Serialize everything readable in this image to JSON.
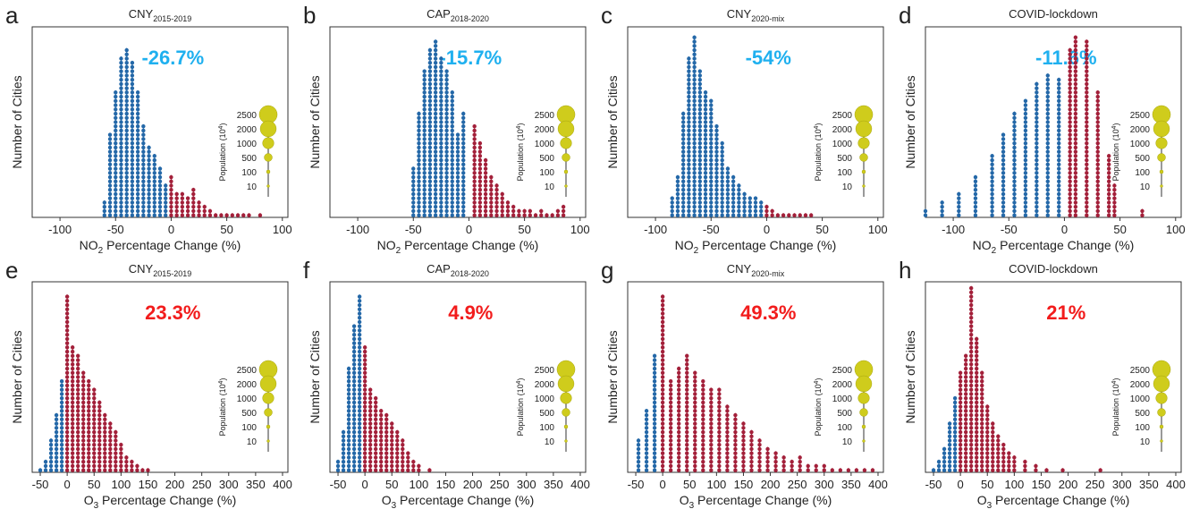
{
  "chart_data": [
    {
      "type": "dot-histogram",
      "panel": "a",
      "title": "CNY",
      "title_sub": "2015-2019",
      "annotation": "-26.7%",
      "annotation_color": "#1fb0ef",
      "xlabel": [
        "NO",
        "2",
        " Percentage Change (%)"
      ],
      "ylabel": "Number of Cities",
      "xlim": [
        -125,
        105
      ],
      "xticks": [
        -100,
        -50,
        0,
        50,
        100
      ],
      "ylim": [
        0,
        45
      ],
      "x": [
        -60,
        -55,
        -50,
        -45,
        -40,
        -35,
        -30,
        -25,
        -20,
        -15,
        -10,
        -5,
        0,
        5,
        10,
        15,
        20,
        25,
        30,
        35,
        40,
        45,
        50,
        55,
        60,
        65,
        70,
        80
      ],
      "values": [
        4,
        20,
        30,
        38,
        40,
        37,
        30,
        22,
        17,
        15,
        12,
        8,
        10,
        6,
        6,
        5,
        7,
        4,
        3,
        2,
        1,
        1,
        1,
        1,
        1,
        1,
        1,
        1
      ],
      "neg_color": "#2468a8",
      "pos_color": "#a3203a",
      "legend_title": [
        "Population (10",
        "4",
        ")"
      ],
      "legend_values": [
        2500,
        2000,
        1000,
        500,
        100,
        10
      ],
      "legend_color": "#cfcc1c"
    },
    {
      "type": "dot-histogram",
      "panel": "b",
      "title": "CAP",
      "title_sub": "2018-2020",
      "annotation": "-15.7%",
      "annotation_color": "#1fb0ef",
      "xlabel": [
        "NO",
        "2",
        " Percentage Change (%)"
      ],
      "ylabel": "Number of Cities",
      "xlim": [
        -125,
        105
      ],
      "xticks": [
        -100,
        -50,
        0,
        50,
        100
      ],
      "ylim": [
        0,
        45
      ],
      "x": [
        -50,
        -45,
        -40,
        -35,
        -30,
        -25,
        -20,
        -15,
        -10,
        -5,
        5,
        10,
        15,
        20,
        25,
        30,
        35,
        40,
        45,
        50,
        55,
        60,
        65,
        70,
        75,
        80,
        85
      ],
      "values": [
        12,
        25,
        35,
        40,
        42,
        38,
        35,
        30,
        20,
        25,
        22,
        18,
        14,
        10,
        8,
        6,
        4,
        3,
        2,
        2,
        2,
        1,
        2,
        1,
        1,
        2,
        3
      ],
      "neg_color": "#2468a8",
      "pos_color": "#a3203a",
      "legend_title": [
        "Population (10",
        "4",
        ")"
      ],
      "legend_values": [
        2500,
        2000,
        1000,
        500,
        100,
        10
      ],
      "legend_color": "#cfcc1c"
    },
    {
      "type": "dot-histogram",
      "panel": "c",
      "title": "CNY",
      "title_sub": "2020-mix",
      "annotation": "-54%",
      "annotation_color": "#1fb0ef",
      "xlabel": [
        "NO",
        "2",
        " Percentage Change (%)"
      ],
      "ylabel": "Number of Cities",
      "xlim": [
        -125,
        105
      ],
      "xticks": [
        -100,
        -50,
        0,
        50,
        100
      ],
      "ylim": [
        0,
        45
      ],
      "x": [
        -85,
        -80,
        -75,
        -70,
        -65,
        -60,
        -55,
        -50,
        -45,
        -40,
        -35,
        -30,
        -25,
        -20,
        -15,
        -10,
        -5,
        0,
        5,
        10,
        15,
        20,
        25,
        30,
        35,
        40
      ],
      "values": [
        5,
        10,
        25,
        38,
        43,
        35,
        30,
        28,
        22,
        18,
        12,
        10,
        8,
        6,
        5,
        5,
        4,
        3,
        2,
        1,
        1,
        1,
        1,
        1,
        1,
        1
      ],
      "neg_color": "#2468a8",
      "pos_color": "#a3203a",
      "legend_title": [
        "Population (10",
        "4",
        ")"
      ],
      "legend_values": [
        2500,
        2000,
        1000,
        500,
        100,
        10
      ],
      "legend_color": "#cfcc1c"
    },
    {
      "type": "dot-histogram",
      "panel": "d",
      "title": "COVID-lockdown",
      "title_sub": null,
      "annotation": "-11.6%",
      "annotation_color": "#1fb0ef",
      "xlabel": [
        "NO",
        "2",
        " Percentage Change (%)"
      ],
      "ylabel": "Number of Cities",
      "xlim": [
        -125,
        105
      ],
      "xticks": [
        -100,
        -50,
        0,
        50,
        100
      ],
      "ylim": [
        0,
        45
      ],
      "x": [
        -125,
        -110,
        -95,
        -80,
        -65,
        -55,
        -45,
        -35,
        -25,
        -15,
        -5,
        5,
        10,
        20,
        30,
        40,
        45,
        70
      ],
      "values": [
        2,
        4,
        6,
        10,
        15,
        20,
        25,
        28,
        32,
        34,
        33,
        40,
        43,
        42,
        30,
        15,
        8,
        2
      ],
      "neg_color": "#2468a8",
      "pos_color": "#a3203a",
      "legend_title": [
        "Population (10",
        "4",
        ")"
      ],
      "legend_values": [
        2500,
        2000,
        1000,
        500,
        100,
        10
      ],
      "legend_color": "#cfcc1c"
    },
    {
      "type": "dot-histogram",
      "panel": "e",
      "title": "CNY",
      "title_sub": "2015-2019",
      "annotation": "23.3%",
      "annotation_color": "#f21c1c",
      "xlabel": [
        "O",
        "3",
        " Percentage Change (%)"
      ],
      "ylabel": "Number of Cities",
      "xlim": [
        -65,
        410
      ],
      "xticks": [
        -50,
        0,
        50,
        100,
        150,
        200,
        250,
        300,
        350,
        400
      ],
      "ylim": [
        0,
        45
      ],
      "x": [
        -50,
        -40,
        -30,
        -20,
        -10,
        0,
        10,
        20,
        30,
        40,
        50,
        60,
        70,
        80,
        90,
        100,
        110,
        120,
        130,
        140,
        150
      ],
      "values": [
        1,
        3,
        8,
        14,
        22,
        42,
        30,
        28,
        24,
        22,
        20,
        17,
        14,
        12,
        10,
        7,
        4,
        3,
        2,
        1,
        1
      ],
      "neg_color": "#2468a8",
      "pos_color": "#a3203a",
      "legend_title": [
        "Population (10",
        "4",
        ")"
      ],
      "legend_values": [
        2500,
        2000,
        1000,
        500,
        100,
        10
      ],
      "legend_color": "#cfcc1c"
    },
    {
      "type": "dot-histogram",
      "panel": "f",
      "title": "CAP",
      "title_sub": "2018-2020",
      "annotation": "4.9%",
      "annotation_color": "#f21c1c",
      "xlabel": [
        "O",
        "3",
        " Percentage Change (%)"
      ],
      "ylabel": "Number of Cities",
      "xlim": [
        -65,
        410
      ],
      "xticks": [
        -50,
        0,
        50,
        100,
        150,
        200,
        250,
        300,
        350,
        400
      ],
      "ylim": [
        0,
        45
      ],
      "x": [
        -50,
        -40,
        -30,
        -20,
        -10,
        0,
        10,
        20,
        30,
        40,
        50,
        60,
        70,
        80,
        90,
        100,
        120
      ],
      "values": [
        3,
        10,
        25,
        35,
        42,
        30,
        20,
        18,
        15,
        14,
        12,
        10,
        8,
        5,
        3,
        2,
        1
      ],
      "neg_color": "#2468a8",
      "pos_color": "#a3203a",
      "legend_title": [
        "Population (10",
        "4",
        ")"
      ],
      "legend_values": [
        2500,
        2000,
        1000,
        500,
        100,
        10
      ],
      "legend_color": "#cfcc1c"
    },
    {
      "type": "dot-histogram",
      "panel": "g",
      "title": "CNY",
      "title_sub": "2020-mix",
      "annotation": "49.3%",
      "annotation_color": "#f21c1c",
      "xlabel": [
        "O",
        "3",
        " Percentage Change (%)"
      ],
      "ylabel": "Number of Cities",
      "xlim": [
        -65,
        410
      ],
      "xticks": [
        -50,
        0,
        50,
        100,
        150,
        200,
        250,
        300,
        350,
        400
      ],
      "ylim": [
        0,
        45
      ],
      "x": [
        -45,
        -30,
        -15,
        0,
        15,
        30,
        45,
        60,
        75,
        90,
        105,
        120,
        135,
        150,
        165,
        180,
        195,
        210,
        225,
        240,
        255,
        270,
        285,
        300,
        315,
        330,
        345,
        360,
        375,
        390
      ],
      "values": [
        8,
        15,
        28,
        42,
        22,
        25,
        28,
        24,
        22,
        20,
        20,
        16,
        14,
        12,
        10,
        8,
        6,
        5,
        4,
        3,
        4,
        2,
        2,
        2,
        1,
        1,
        1,
        1,
        1,
        1
      ],
      "neg_color": "#2468a8",
      "pos_color": "#a3203a",
      "legend_title": [
        "Population (10",
        "4",
        ")"
      ],
      "legend_values": [
        2500,
        2000,
        1000,
        500,
        100,
        10
      ],
      "legend_color": "#cfcc1c"
    },
    {
      "type": "dot-histogram",
      "panel": "h",
      "title": "COVID-lockdown",
      "title_sub": null,
      "annotation": "21%",
      "annotation_color": "#f21c1c",
      "xlabel": [
        "O",
        "3",
        " Percentage Change (%)"
      ],
      "ylabel": "Number of Cities",
      "xlim": [
        -65,
        410
      ],
      "xticks": [
        -50,
        0,
        50,
        100,
        150,
        200,
        250,
        300,
        350,
        400
      ],
      "ylim": [
        0,
        45
      ],
      "x": [
        -50,
        -40,
        -30,
        -20,
        -10,
        0,
        10,
        20,
        30,
        40,
        50,
        60,
        70,
        80,
        90,
        100,
        120,
        140,
        160,
        190,
        260
      ],
      "values": [
        1,
        3,
        6,
        12,
        18,
        24,
        28,
        44,
        32,
        24,
        16,
        12,
        9,
        7,
        5,
        4,
        3,
        2,
        1,
        1,
        1
      ],
      "neg_color": "#2468a8",
      "pos_color": "#a3203a",
      "legend_title": [
        "Population (10",
        "4",
        ")"
      ],
      "legend_values": [
        2500,
        2000,
        1000,
        500,
        100,
        10
      ],
      "legend_color": "#cfcc1c"
    }
  ]
}
